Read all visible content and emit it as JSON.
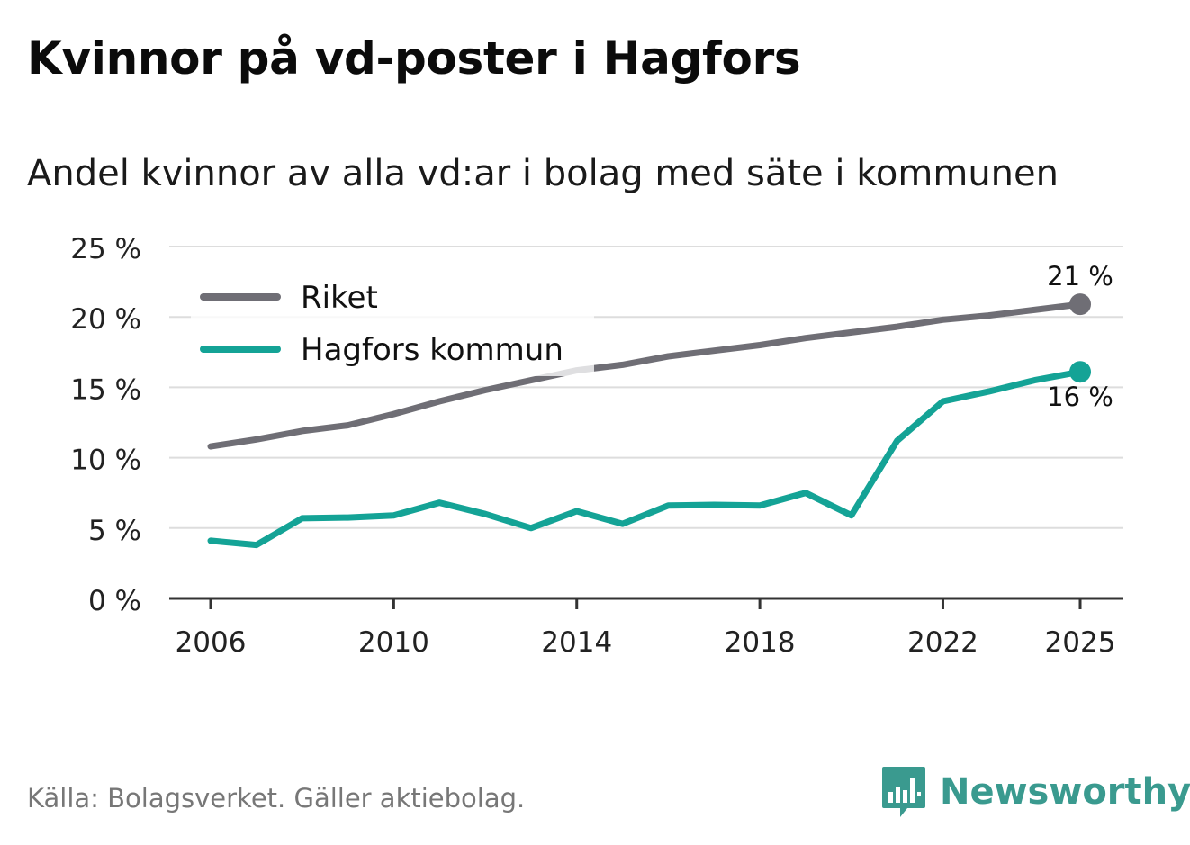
{
  "title": "Kvinnor på vd-poster i Hagfors",
  "subtitle": "Andel kvinnor av alla vd:ar i bolag med säte i kommunen",
  "source": "Källa: Bolagsverket. Gäller aktiebolag.",
  "brand": {
    "name": "Newsworthy",
    "color": "#3a9a8f",
    "icon": "bar-chart-speech-bubble-icon"
  },
  "colors": {
    "riket": "#6f6e75",
    "hagfors": "#14a396",
    "grid": "#dddddd",
    "axis": "#333333"
  },
  "chart_data": {
    "type": "line",
    "title": "Kvinnor på vd-poster i Hagfors",
    "subtitle": "Andel kvinnor av alla vd:ar i bolag med säte i kommunen",
    "xlabel": "",
    "ylabel": "",
    "x": [
      2006,
      2007,
      2008,
      2009,
      2010,
      2011,
      2012,
      2013,
      2014,
      2015,
      2016,
      2017,
      2018,
      2019,
      2020,
      2021,
      2022,
      2023,
      2024,
      2025
    ],
    "xlim": [
      2006,
      2025
    ],
    "xticks": [
      2006,
      2010,
      2014,
      2018,
      2022,
      2025
    ],
    "xtick_labels": [
      "2006",
      "2010",
      "2014",
      "2018",
      "2022",
      "2025"
    ],
    "ylim": [
      0,
      25
    ],
    "yticks": [
      0,
      5,
      10,
      15,
      20,
      25
    ],
    "ytick_labels": [
      "0 %",
      "5 %",
      "10 %",
      "15 %",
      "20 %",
      "25 %"
    ],
    "grid": true,
    "legend_position": "top-left",
    "series": [
      {
        "name": "Riket",
        "color": "#6f6e75",
        "values": [
          10.8,
          11.3,
          11.9,
          12.3,
          13.1,
          14.0,
          14.8,
          15.5,
          16.2,
          16.6,
          17.2,
          17.6,
          18.0,
          18.5,
          18.9,
          19.3,
          19.8,
          20.1,
          20.5,
          20.9
        ],
        "end_label": "21 %"
      },
      {
        "name": "Hagfors kommun",
        "color": "#14a396",
        "values": [
          4.1,
          3.8,
          5.7,
          5.75,
          5.9,
          6.8,
          6.0,
          5.0,
          6.2,
          5.3,
          6.6,
          6.65,
          6.6,
          7.5,
          5.9,
          11.2,
          14.0,
          14.7,
          15.5,
          16.1
        ],
        "end_label": "16 %"
      }
    ]
  }
}
